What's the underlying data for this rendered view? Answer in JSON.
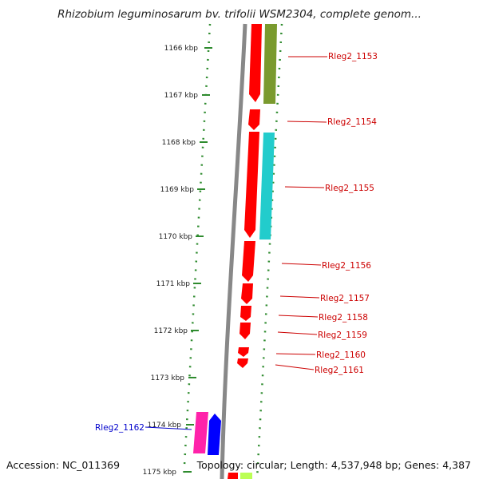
{
  "title": "Rhizobium leguminosarum bv. trifolii WSM2304, complete genom...",
  "accession": "Accession: NC_011369",
  "topology": "Topology: circular; Length: 4,537,948 bp; Genes: 4,387",
  "colors": {
    "forward_gene": "#ff0000",
    "reverse_gene": "#0000ff",
    "cog_olive": "#7a9a2e",
    "cog_cyan": "#22cccc",
    "cog_magenta": "#ff22aa",
    "tick_green": "#2e8b2e",
    "label_red": "#cc0000",
    "label_blue": "#0000cc",
    "backbone": "#888888"
  },
  "ticks": [
    "1166 kbp",
    "1167 kbp",
    "1168 kbp",
    "1169 kbp",
    "1170 kbp",
    "1171 kbp",
    "1172 kbp",
    "1173 kbp",
    "1174 kbp",
    "1175 kbp"
  ],
  "gene_labels": [
    "Rleg2_1153",
    "Rleg2_1154",
    "Rleg2_1155",
    "Rleg2_1156",
    "Rleg2_1157",
    "Rleg2_1158",
    "Rleg2_1159",
    "Rleg2_1160",
    "Rleg2_1161",
    "Rleg2_1162"
  ]
}
